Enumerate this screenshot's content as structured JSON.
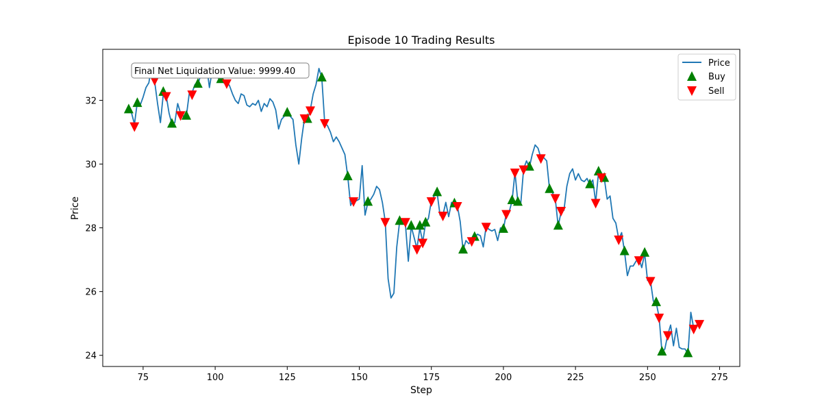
{
  "chart_data": {
    "type": "line",
    "title": "Episode 10 Trading Results",
    "xlabel": "Step",
    "ylabel": "Price",
    "xlim": [
      61,
      282
    ],
    "ylim": [
      23.65,
      33.6
    ],
    "xticks": [
      75,
      100,
      125,
      150,
      175,
      200,
      225,
      250,
      275
    ],
    "yticks": [
      24,
      26,
      28,
      30,
      32
    ],
    "grid": false,
    "legend_position": "top-right",
    "annotation": "Final Net Liquidation Value: 9999.40",
    "colors": {
      "price": "#1f77b4",
      "buy": "#008000",
      "sell": "#ff0000"
    },
    "series": [
      {
        "name": "Price",
        "type": "line",
        "points": [
          [
            70,
            31.75
          ],
          [
            71,
            31.6
          ],
          [
            72,
            31.25
          ],
          [
            73,
            31.95
          ],
          [
            74,
            31.85
          ],
          [
            75,
            32.1
          ],
          [
            76,
            32.4
          ],
          [
            77,
            32.55
          ],
          [
            78,
            33.1
          ],
          [
            79,
            32.6
          ],
          [
            80,
            31.9
          ],
          [
            81,
            31.3
          ],
          [
            82,
            32.2
          ],
          [
            83,
            32.15
          ],
          [
            84,
            31.6
          ],
          [
            85,
            31.25
          ],
          [
            86,
            31.3
          ],
          [
            87,
            31.9
          ],
          [
            88,
            31.6
          ],
          [
            89,
            31.5
          ],
          [
            90,
            31.5
          ],
          [
            91,
            32.2
          ],
          [
            92,
            32.25
          ],
          [
            93,
            32.5
          ],
          [
            94,
            32.5
          ],
          [
            95,
            32.8
          ],
          [
            96,
            33.0
          ],
          [
            97,
            33.1
          ],
          [
            98,
            32.4
          ],
          [
            99,
            32.95
          ],
          [
            100,
            33.0
          ],
          [
            101,
            32.7
          ],
          [
            102,
            32.65
          ],
          [
            103,
            32.55
          ],
          [
            104,
            32.6
          ],
          [
            105,
            32.45
          ],
          [
            106,
            32.2
          ],
          [
            107,
            32.0
          ],
          [
            108,
            31.9
          ],
          [
            109,
            32.2
          ],
          [
            110,
            32.15
          ],
          [
            111,
            31.85
          ],
          [
            112,
            31.8
          ],
          [
            113,
            31.9
          ],
          [
            114,
            31.85
          ],
          [
            115,
            32.0
          ],
          [
            116,
            31.65
          ],
          [
            117,
            31.9
          ],
          [
            118,
            31.8
          ],
          [
            119,
            32.05
          ],
          [
            120,
            31.95
          ],
          [
            121,
            31.7
          ],
          [
            122,
            31.1
          ],
          [
            123,
            31.4
          ],
          [
            124,
            31.5
          ],
          [
            125,
            31.6
          ],
          [
            126,
            31.5
          ],
          [
            127,
            31.4
          ],
          [
            128,
            30.6
          ],
          [
            129,
            30.0
          ],
          [
            130,
            30.8
          ],
          [
            131,
            31.45
          ],
          [
            132,
            31.4
          ],
          [
            133,
            31.7
          ],
          [
            134,
            32.2
          ],
          [
            135,
            32.5
          ],
          [
            136,
            33.0
          ],
          [
            137,
            32.7
          ],
          [
            138,
            31.3
          ],
          [
            139,
            31.2
          ],
          [
            140,
            31.0
          ],
          [
            141,
            30.7
          ],
          [
            142,
            30.85
          ],
          [
            143,
            30.7
          ],
          [
            144,
            30.5
          ],
          [
            145,
            30.3
          ],
          [
            146,
            29.6
          ],
          [
            147,
            28.7
          ],
          [
            148,
            28.9
          ],
          [
            149,
            28.85
          ],
          [
            150,
            28.9
          ],
          [
            151,
            29.95
          ],
          [
            152,
            28.4
          ],
          [
            153,
            28.8
          ],
          [
            154,
            28.9
          ],
          [
            155,
            29.05
          ],
          [
            156,
            29.3
          ],
          [
            157,
            29.2
          ],
          [
            158,
            28.8
          ],
          [
            159,
            28.2
          ],
          [
            160,
            26.4
          ],
          [
            161,
            25.8
          ],
          [
            162,
            25.95
          ],
          [
            163,
            27.4
          ],
          [
            164,
            28.2
          ],
          [
            165,
            28.15
          ],
          [
            166,
            28.1
          ],
          [
            167,
            26.95
          ],
          [
            168,
            28.05
          ],
          [
            169,
            27.7
          ],
          [
            170,
            27.35
          ],
          [
            171,
            28.0
          ],
          [
            172,
            27.55
          ],
          [
            173,
            28.15
          ],
          [
            174,
            28.3
          ],
          [
            175,
            28.85
          ],
          [
            176,
            29.0
          ],
          [
            177,
            29.1
          ],
          [
            178,
            28.4
          ],
          [
            179,
            28.4
          ],
          [
            180,
            28.8
          ],
          [
            181,
            28.35
          ],
          [
            182,
            28.8
          ],
          [
            183,
            28.75
          ],
          [
            184,
            28.7
          ],
          [
            185,
            28.2
          ],
          [
            186,
            27.3
          ],
          [
            187,
            27.6
          ],
          [
            188,
            27.5
          ],
          [
            189,
            27.6
          ],
          [
            190,
            27.7
          ],
          [
            191,
            27.8
          ],
          [
            192,
            27.75
          ],
          [
            193,
            27.4
          ],
          [
            194,
            28.05
          ],
          [
            195,
            27.95
          ],
          [
            196,
            27.9
          ],
          [
            197,
            27.95
          ],
          [
            198,
            27.6
          ],
          [
            199,
            28.0
          ],
          [
            200,
            27.95
          ],
          [
            201,
            28.45
          ],
          [
            202,
            28.5
          ],
          [
            203,
            28.85
          ],
          [
            204,
            29.75
          ],
          [
            205,
            28.8
          ],
          [
            206,
            28.75
          ],
          [
            207,
            29.85
          ],
          [
            208,
            30.1
          ],
          [
            209,
            29.9
          ],
          [
            210,
            30.3
          ],
          [
            211,
            30.6
          ],
          [
            212,
            30.5
          ],
          [
            213,
            30.2
          ],
          [
            214,
            30.2
          ],
          [
            215,
            30.1
          ],
          [
            216,
            29.2
          ],
          [
            217,
            29.1
          ],
          [
            218,
            28.9
          ],
          [
            219,
            28.05
          ],
          [
            220,
            28.5
          ],
          [
            221,
            28.55
          ],
          [
            222,
            29.3
          ],
          [
            223,
            29.7
          ],
          [
            224,
            29.85
          ],
          [
            225,
            29.5
          ],
          [
            226,
            29.7
          ],
          [
            227,
            29.5
          ],
          [
            228,
            29.45
          ],
          [
            229,
            29.55
          ],
          [
            230,
            29.35
          ],
          [
            231,
            29.5
          ],
          [
            232,
            28.8
          ],
          [
            233,
            29.75
          ],
          [
            234,
            29.6
          ],
          [
            235,
            29.55
          ],
          [
            236,
            28.9
          ],
          [
            237,
            29.0
          ],
          [
            238,
            28.3
          ],
          [
            239,
            28.15
          ],
          [
            240,
            27.65
          ],
          [
            241,
            27.85
          ],
          [
            242,
            27.25
          ],
          [
            243,
            26.5
          ],
          [
            244,
            26.8
          ],
          [
            245,
            26.8
          ],
          [
            246,
            26.95
          ],
          [
            247,
            27.05
          ],
          [
            248,
            26.75
          ],
          [
            249,
            27.2
          ],
          [
            250,
            26.35
          ],
          [
            251,
            26.35
          ],
          [
            252,
            25.7
          ],
          [
            253,
            25.65
          ],
          [
            254,
            25.2
          ],
          [
            255,
            24.1
          ],
          [
            256,
            24.2
          ],
          [
            257,
            24.65
          ],
          [
            258,
            24.95
          ],
          [
            259,
            24.3
          ],
          [
            260,
            24.85
          ],
          [
            261,
            24.25
          ],
          [
            262,
            24.2
          ],
          [
            263,
            24.2
          ],
          [
            264,
            24.05
          ],
          [
            265,
            25.35
          ],
          [
            266,
            24.85
          ],
          [
            267,
            24.95
          ],
          [
            268,
            25.0
          ]
        ]
      },
      {
        "name": "Buy",
        "type": "scatter",
        "marker": "triangle-up",
        "points": [
          [
            70,
            31.7
          ],
          [
            73,
            31.9
          ],
          [
            82,
            32.25
          ],
          [
            85,
            31.25
          ],
          [
            90,
            31.5
          ],
          [
            94,
            32.5
          ],
          [
            102,
            32.65
          ],
          [
            125,
            31.6
          ],
          [
            132,
            31.4
          ],
          [
            137,
            32.7
          ],
          [
            146,
            29.6
          ],
          [
            153,
            28.8
          ],
          [
            164,
            28.2
          ],
          [
            168,
            28.05
          ],
          [
            171,
            28.05
          ],
          [
            173,
            28.15
          ],
          [
            177,
            29.1
          ],
          [
            183,
            28.75
          ],
          [
            186,
            27.3
          ],
          [
            190,
            27.7
          ],
          [
            200,
            27.95
          ],
          [
            203,
            28.85
          ],
          [
            205,
            28.8
          ],
          [
            209,
            29.9
          ],
          [
            216,
            29.2
          ],
          [
            219,
            28.05
          ],
          [
            230,
            29.35
          ],
          [
            233,
            29.75
          ],
          [
            235,
            29.55
          ],
          [
            242,
            27.25
          ],
          [
            249,
            27.2
          ],
          [
            253,
            25.65
          ],
          [
            255,
            24.1
          ],
          [
            264,
            24.05
          ]
        ]
      },
      {
        "name": "Sell",
        "type": "scatter",
        "marker": "triangle-down",
        "points": [
          [
            72,
            31.2
          ],
          [
            79,
            32.65
          ],
          [
            83,
            32.15
          ],
          [
            88,
            31.55
          ],
          [
            92,
            32.2
          ],
          [
            96,
            32.9
          ],
          [
            104,
            32.55
          ],
          [
            131,
            31.45
          ],
          [
            133,
            31.7
          ],
          [
            138,
            31.3
          ],
          [
            148,
            28.85
          ],
          [
            159,
            28.2
          ],
          [
            166,
            28.2
          ],
          [
            170,
            27.35
          ],
          [
            172,
            27.55
          ],
          [
            175,
            28.85
          ],
          [
            179,
            28.4
          ],
          [
            184,
            28.7
          ],
          [
            189,
            27.6
          ],
          [
            194,
            28.05
          ],
          [
            201,
            28.45
          ],
          [
            204,
            29.75
          ],
          [
            207,
            29.85
          ],
          [
            213,
            30.2
          ],
          [
            218,
            28.95
          ],
          [
            220,
            28.55
          ],
          [
            232,
            28.8
          ],
          [
            234,
            29.6
          ],
          [
            240,
            27.65
          ],
          [
            247,
            27.0
          ],
          [
            251,
            26.35
          ],
          [
            254,
            25.2
          ],
          [
            257,
            24.65
          ],
          [
            266,
            24.85
          ],
          [
            268,
            25.0
          ]
        ]
      }
    ]
  }
}
